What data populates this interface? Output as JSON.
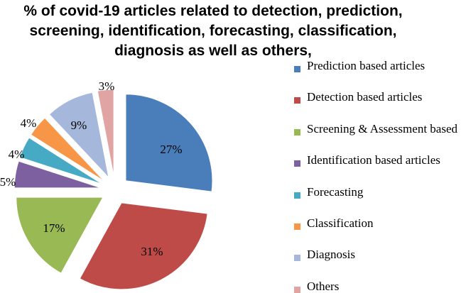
{
  "chart_data": {
    "type": "pie",
    "title": "% of covid-19 articles related to detection, prediction, screening, identification, forecasting, classification, diagnosis as well as others,",
    "categories": [
      "Prediction based articles",
      "Detection based articles",
      "Screening & Assessment based",
      "Identification based articles",
      "Forecasting",
      "Classification",
      "Diagnosis",
      "Others"
    ],
    "values": [
      27,
      31,
      17,
      5,
      4,
      4,
      9,
      3
    ],
    "data_labels": [
      "27%",
      "31%",
      "17%",
      "5%",
      "4%",
      "4%",
      "9%",
      "3%"
    ],
    "colors": [
      "#4A7EBB",
      "#BE4B48",
      "#98B954",
      "#7D60A0",
      "#46AAC5",
      "#F79646",
      "#A5B8DB",
      "#E0A4A2"
    ],
    "exploded": true,
    "legend_position": "right"
  }
}
